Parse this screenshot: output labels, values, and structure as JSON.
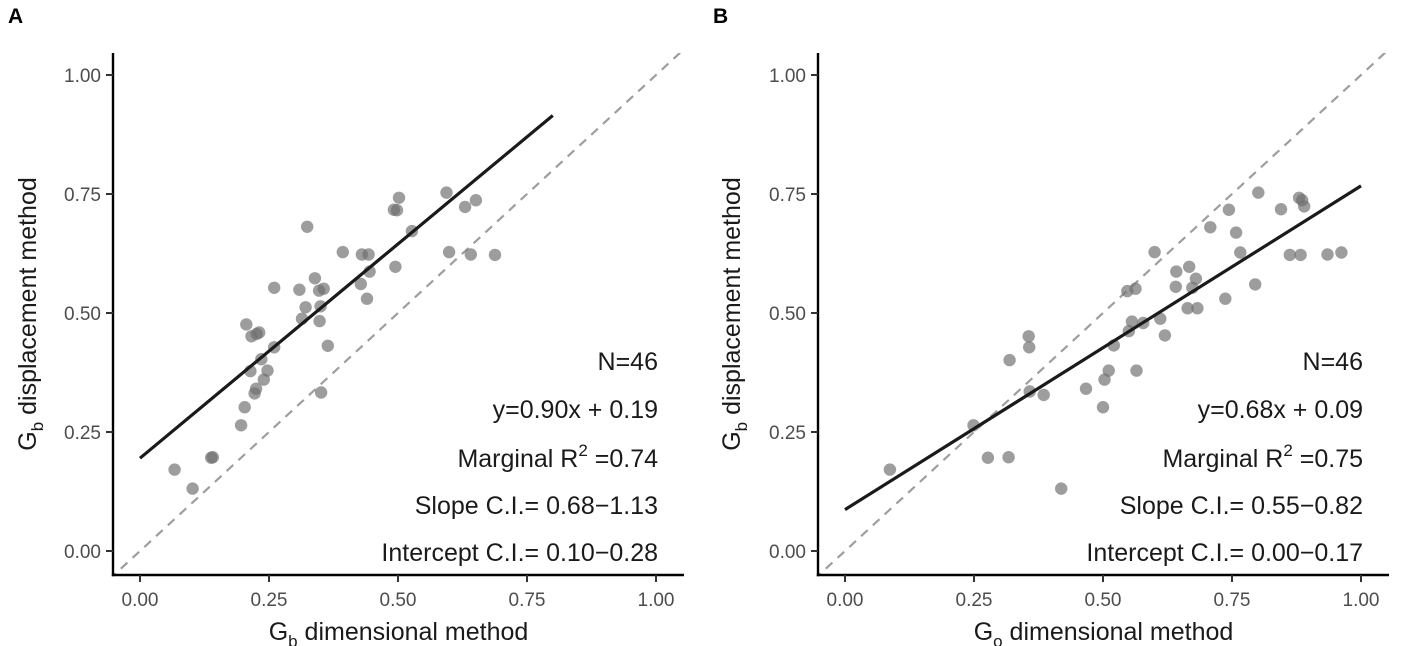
{
  "chart_data": [
    {
      "type": "scatter",
      "panel_label": "A",
      "xlabel": {
        "main": "G",
        "sub": "b",
        "rest": " dimensional method"
      },
      "ylabel": {
        "main": "G",
        "sub": "b",
        "rest": " displacement method"
      },
      "xlim": [
        0,
        1
      ],
      "ylim": [
        0,
        1
      ],
      "x_ticks": [
        "0.00",
        "0.25",
        "0.50",
        "0.75",
        "1.00"
      ],
      "y_ticks": [
        "0.00",
        "0.25",
        "0.50",
        "0.75",
        "1.00"
      ],
      "grid": false,
      "identity_line": true,
      "fit": {
        "slope": 0.9,
        "intercept": 0.195,
        "x_range": [
          0,
          0.8
        ]
      },
      "annotations": {
        "n": "N=46",
        "equation": "y=0.90x + 0.19",
        "r2_prefix": "Marginal R",
        "r2_sup": "2",
        "r2_suffix": " =0.74",
        "slope_ci": "Slope C.I.= 0.68−1.13",
        "intercept_ci": "Intercept C.I.= 0.10−0.28"
      },
      "points": [
        [
          0.067,
          0.171
        ],
        [
          0.102,
          0.131
        ],
        [
          0.138,
          0.196
        ],
        [
          0.141,
          0.197
        ],
        [
          0.196,
          0.264
        ],
        [
          0.203,
          0.302
        ],
        [
          0.206,
          0.476
        ],
        [
          0.214,
          0.378
        ],
        [
          0.216,
          0.451
        ],
        [
          0.222,
          0.331
        ],
        [
          0.225,
          0.341
        ],
        [
          0.226,
          0.456
        ],
        [
          0.231,
          0.459
        ],
        [
          0.235,
          0.403
        ],
        [
          0.24,
          0.36
        ],
        [
          0.247,
          0.379
        ],
        [
          0.26,
          0.428
        ],
        [
          0.26,
          0.553
        ],
        [
          0.309,
          0.549
        ],
        [
          0.314,
          0.488
        ],
        [
          0.321,
          0.512
        ],
        [
          0.324,
          0.681
        ],
        [
          0.339,
          0.573
        ],
        [
          0.347,
          0.547
        ],
        [
          0.348,
          0.483
        ],
        [
          0.35,
          0.514
        ],
        [
          0.351,
          0.333
        ],
        [
          0.356,
          0.551
        ],
        [
          0.364,
          0.431
        ],
        [
          0.393,
          0.628
        ],
        [
          0.428,
          0.561
        ],
        [
          0.43,
          0.623
        ],
        [
          0.44,
          0.53
        ],
        [
          0.443,
          0.623
        ],
        [
          0.445,
          0.587
        ],
        [
          0.492,
          0.717
        ],
        [
          0.495,
          0.597
        ],
        [
          0.498,
          0.716
        ],
        [
          0.502,
          0.742
        ],
        [
          0.527,
          0.672
        ],
        [
          0.594,
          0.753
        ],
        [
          0.599,
          0.628
        ],
        [
          0.63,
          0.723
        ],
        [
          0.641,
          0.623
        ],
        [
          0.651,
          0.737
        ],
        [
          0.688,
          0.622
        ]
      ]
    },
    {
      "type": "scatter",
      "panel_label": "B",
      "xlabel": {
        "main": "G",
        "sub": "o",
        "rest": " dimensional method"
      },
      "ylabel": {
        "main": "G",
        "sub": "b",
        "rest": " displacement method"
      },
      "xlim": [
        0,
        1
      ],
      "ylim": [
        0,
        1
      ],
      "x_ticks": [
        "0.00",
        "0.25",
        "0.50",
        "0.75",
        "1.00"
      ],
      "y_ticks": [
        "0.00",
        "0.25",
        "0.50",
        "0.75",
        "1.00"
      ],
      "grid": false,
      "identity_line": true,
      "fit": {
        "slope": 0.68,
        "intercept": 0.087,
        "x_range": [
          0,
          1
        ]
      },
      "annotations": {
        "n": "N=46",
        "equation": "y=0.68x + 0.09",
        "r2_prefix": "Marginal R",
        "r2_sup": "2",
        "r2_suffix": " =0.75",
        "slope_ci": "Slope C.I.= 0.55−0.82",
        "intercept_ci": "Intercept C.I.= 0.00−0.17"
      },
      "points": [
        [
          0.087,
          0.171
        ],
        [
          0.249,
          0.264
        ],
        [
          0.277,
          0.196
        ],
        [
          0.317,
          0.197
        ],
        [
          0.319,
          0.401
        ],
        [
          0.356,
          0.451
        ],
        [
          0.357,
          0.428
        ],
        [
          0.358,
          0.335
        ],
        [
          0.385,
          0.328
        ],
        [
          0.419,
          0.131
        ],
        [
          0.467,
          0.341
        ],
        [
          0.5,
          0.302
        ],
        [
          0.503,
          0.36
        ],
        [
          0.511,
          0.379
        ],
        [
          0.521,
          0.432
        ],
        [
          0.547,
          0.546
        ],
        [
          0.55,
          0.462
        ],
        [
          0.556,
          0.482
        ],
        [
          0.563,
          0.551
        ],
        [
          0.565,
          0.379
        ],
        [
          0.578,
          0.479
        ],
        [
          0.6,
          0.628
        ],
        [
          0.611,
          0.488
        ],
        [
          0.62,
          0.453
        ],
        [
          0.641,
          0.555
        ],
        [
          0.642,
          0.587
        ],
        [
          0.664,
          0.51
        ],
        [
          0.667,
          0.597
        ],
        [
          0.673,
          0.553
        ],
        [
          0.68,
          0.572
        ],
        [
          0.683,
          0.51
        ],
        [
          0.708,
          0.68
        ],
        [
          0.737,
          0.53
        ],
        [
          0.744,
          0.717
        ],
        [
          0.758,
          0.669
        ],
        [
          0.766,
          0.627
        ],
        [
          0.795,
          0.56
        ],
        [
          0.801,
          0.753
        ],
        [
          0.845,
          0.718
        ],
        [
          0.862,
          0.622
        ],
        [
          0.88,
          0.742
        ],
        [
          0.883,
          0.622
        ],
        [
          0.886,
          0.737
        ],
        [
          0.89,
          0.724
        ],
        [
          0.935,
          0.623
        ],
        [
          0.962,
          0.627
        ]
      ]
    }
  ]
}
